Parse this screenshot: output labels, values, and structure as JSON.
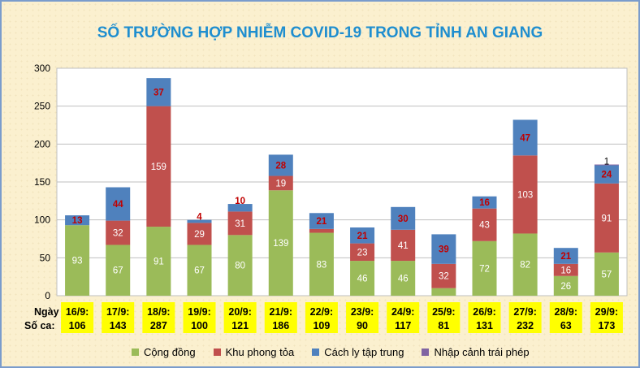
{
  "chart_data": {
    "type": "bar",
    "stacked": true,
    "title": "SỐ TRƯỜNG HỢP NHIỄM COVID-19 TRONG TỈNH AN GIANG",
    "row_labels": {
      "date": "Ngày",
      "total": "Số ca:"
    },
    "categories": [
      "16/9:",
      "17/9:",
      "18/9:",
      "19/9:",
      "20/9:",
      "21/9:",
      "22/9:",
      "23/9:",
      "24/9:",
      "25/9:",
      "26/9:",
      "27/9:",
      "28/9:",
      "29/9:"
    ],
    "totals": [
      "106",
      "143",
      "287",
      "100",
      "121",
      "186",
      "109",
      "90",
      "117",
      "81",
      "131",
      "232",
      "63",
      "173"
    ],
    "ylim": [
      0,
      300
    ],
    "yticks": [
      0,
      50,
      100,
      150,
      200,
      250,
      300
    ],
    "grid": true,
    "legend_position": "bottom",
    "series": [
      {
        "name": "Cộng đồng",
        "color": "#9bbb59",
        "label_color": "#ffffff",
        "values": [
          93,
          67,
          91,
          67,
          80,
          139,
          83,
          46,
          46,
          10,
          72,
          82,
          26,
          57
        ]
      },
      {
        "name": "Khu phong tỏa",
        "color": "#c0504d",
        "label_color": "#ffffff",
        "values": [
          0,
          32,
          159,
          29,
          31,
          19,
          5,
          23,
          41,
          32,
          43,
          103,
          16,
          91
        ]
      },
      {
        "name": "Cách ly tập trung",
        "color": "#4f81bd",
        "label_color": "#c00000",
        "values": [
          13,
          44,
          37,
          4,
          10,
          28,
          21,
          21,
          30,
          39,
          16,
          47,
          21,
          24
        ]
      },
      {
        "name": "Nhập cảnh trái phép",
        "color": "#8064a2",
        "label_color": "#000000",
        "values": [
          0,
          0,
          0,
          0,
          0,
          0,
          0,
          0,
          0,
          0,
          0,
          0,
          0,
          1
        ]
      }
    ]
  }
}
